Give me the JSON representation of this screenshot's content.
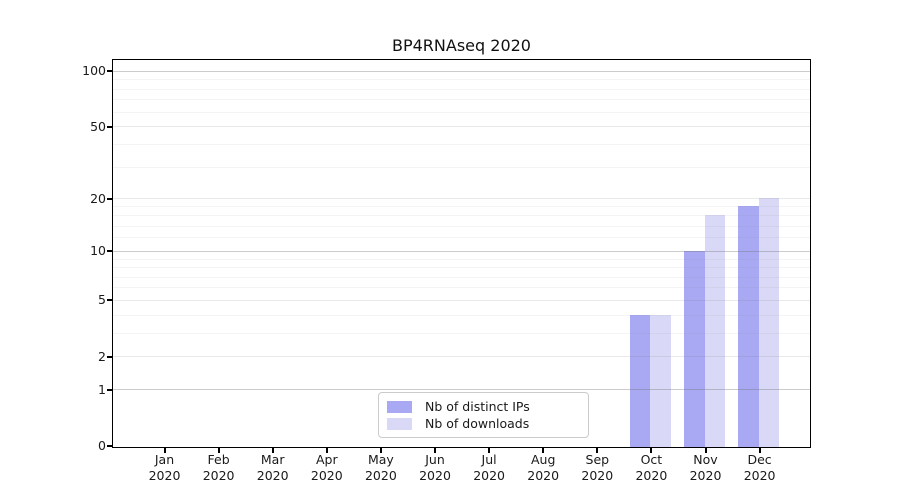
{
  "title": "BP4RNAseq 2020",
  "chart_data": {
    "type": "bar",
    "title": "BP4RNAseq 2020",
    "categories": [
      "Jan 2020",
      "Feb 2020",
      "Mar 2020",
      "Apr 2020",
      "May 2020",
      "Jun 2020",
      "Jul 2020",
      "Aug 2020",
      "Sep 2020",
      "Oct 2020",
      "Nov 2020",
      "Dec 2020"
    ],
    "series": [
      {
        "name": "Nb of distinct IPs",
        "color": "#a9a9f3",
        "values": [
          0,
          0,
          0,
          0,
          0,
          0,
          0,
          0,
          0,
          4,
          10,
          18
        ]
      },
      {
        "name": "Nb of downloads",
        "color": "#d9d9f7",
        "values": [
          0,
          0,
          0,
          0,
          0,
          0,
          0,
          0,
          0,
          4,
          16,
          20
        ]
      }
    ],
    "yscale": "log1p",
    "ylim": [
      0,
      113
    ],
    "y_axis_ticks": [
      0,
      1,
      2,
      5,
      10,
      20,
      50,
      100
    ],
    "y_minor_gridlines": [
      3,
      4,
      6,
      7,
      8,
      9,
      12,
      14,
      16,
      18,
      30,
      40,
      60,
      70,
      80,
      90
    ],
    "xlabel": "",
    "ylabel": "",
    "grid": "horizontal",
    "legend_position": "lower center",
    "axis_color": "#000000",
    "background_color": "#ffffff"
  }
}
